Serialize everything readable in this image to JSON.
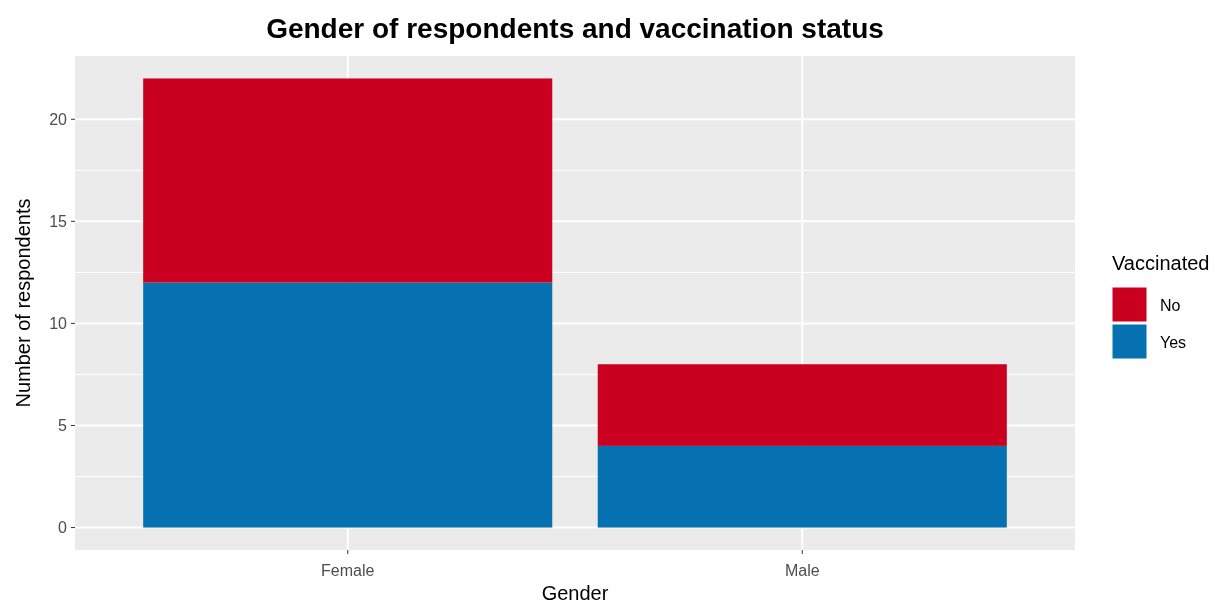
{
  "chart_data": {
    "type": "bar",
    "title": "Gender of respondents and vaccination status",
    "xlabel": "Gender",
    "ylabel": "Number of respondents",
    "legend_title": "Vaccinated",
    "categories": [
      "Female",
      "Male"
    ],
    "stacked": true,
    "series": [
      {
        "name": "Yes",
        "color": "#0571b0",
        "values": [
          12,
          4
        ]
      },
      {
        "name": "No",
        "color": "#ca0020",
        "values": [
          10,
          4
        ]
      }
    ],
    "ylim": [
      -1.1,
      23.1
    ],
    "yticks": [
      0,
      5,
      10,
      15,
      20
    ],
    "grid": true,
    "legend": "right"
  }
}
